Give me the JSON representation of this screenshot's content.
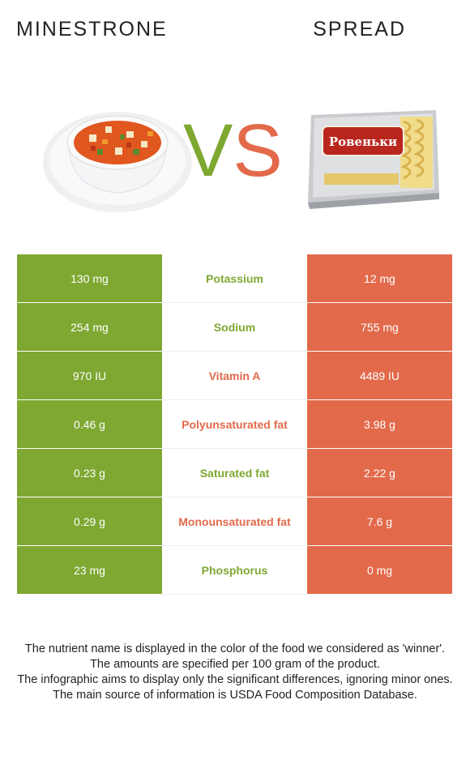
{
  "header": {
    "left_title": "MINESTRONE",
    "right_title": "SPREAD",
    "vs_v": "V",
    "vs_s": "S"
  },
  "images": {
    "left": "minestrone-soup-bowl",
    "right": "spread-package",
    "right_brand": "Ровеньки"
  },
  "colors": {
    "left_food": "#7ea832",
    "right_food": "#e26a4b"
  },
  "rows": [
    {
      "left": "130 mg",
      "nutrient": "Potassium",
      "right": "12 mg",
      "winner": "left"
    },
    {
      "left": "254 mg",
      "nutrient": "Sodium",
      "right": "755 mg",
      "winner": "left"
    },
    {
      "left": "970 IU",
      "nutrient": "Vitamin A",
      "right": "4489 IU",
      "winner": "right"
    },
    {
      "left": "0.46 g",
      "nutrient": "Polyunsaturated fat",
      "right": "3.98 g",
      "winner": "right"
    },
    {
      "left": "0.23 g",
      "nutrient": "Saturated fat",
      "right": "2.22 g",
      "winner": "left"
    },
    {
      "left": "0.29 g",
      "nutrient": "Monounsaturated fat",
      "right": "7.6 g",
      "winner": "right"
    },
    {
      "left": "23 mg",
      "nutrient": "Phosphorus",
      "right": "0 mg",
      "winner": "left"
    }
  ],
  "footer": {
    "line1": "The nutrient name is displayed in the color of the food we considered as 'winner'.",
    "line2": "The amounts are specified per 100 gram of the product.",
    "line3": "The infographic aims to display only the significant differences, ignoring minor ones.",
    "line4": "The main source of information is USDA Food Composition Database."
  }
}
